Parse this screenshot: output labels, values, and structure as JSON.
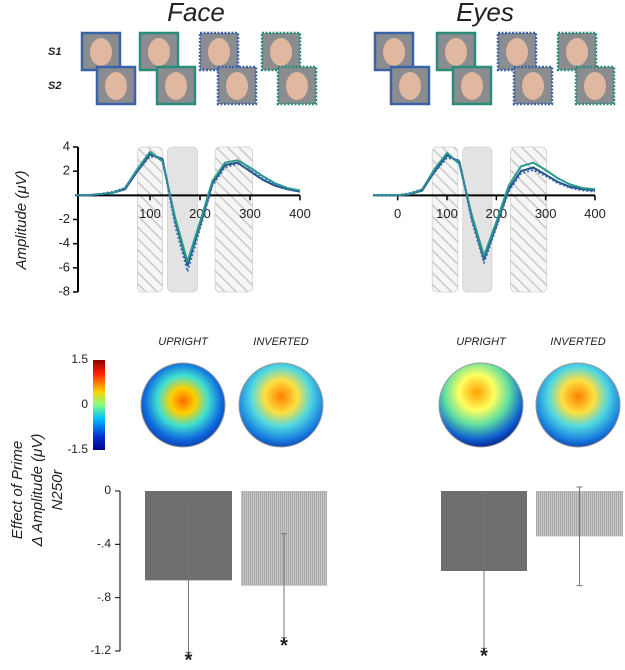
{
  "stimuli": {
    "rows": [
      "S1",
      "S2"
    ]
  },
  "topomaps": {
    "conditions": [
      "UPRIGHT",
      "INVERTED"
    ],
    "colorbar": {
      "range": [
        -1.5,
        1.5
      ],
      "ticks": [
        1.5,
        0,
        -1.5
      ]
    }
  },
  "chart_data": [
    {
      "type": "line",
      "title": "Face",
      "ylabel": "Amplitude (μV)",
      "x": [
        -50,
        -25,
        0,
        25,
        50,
        75,
        100,
        125,
        150,
        175,
        200,
        225,
        250,
        275,
        300,
        325,
        350,
        375,
        400
      ],
      "series": [
        {
          "color": "#1f4e8c",
          "dash": false,
          "values": [
            0,
            0,
            0.1,
            0.2,
            0.5,
            2,
            3.4,
            3,
            -2,
            -5.8,
            -2.5,
            1,
            2.5,
            2.7,
            2,
            1.3,
            0.8,
            0.5,
            0.3
          ]
        },
        {
          "color": "#2a9a8a",
          "dash": false,
          "values": [
            0,
            0,
            0.1,
            0.2,
            0.6,
            2.2,
            3.6,
            2.8,
            -1.8,
            -5.5,
            -2.2,
            1.2,
            2.7,
            2.9,
            2.3,
            1.6,
            1,
            0.6,
            0.4
          ]
        },
        {
          "color": "#3d6fb0",
          "dash": true,
          "values": [
            0,
            0,
            0.1,
            0.3,
            0.6,
            2,
            3.2,
            3.1,
            -2.5,
            -6.3,
            -2.8,
            0.8,
            2.3,
            2.6,
            2.1,
            1.4,
            0.9,
            0.5,
            0.3
          ]
        }
      ],
      "windows": [
        {
          "range": [
            75,
            125
          ],
          "style": "hatch"
        },
        {
          "range": [
            135,
            195
          ],
          "style": "solid"
        },
        {
          "range": [
            230,
            305
          ],
          "style": "hatch"
        }
      ],
      "xlim": [
        -50,
        400
      ],
      "xticks": [
        100,
        200,
        300,
        400
      ],
      "ylim": [
        -8,
        4
      ],
      "yticks": [
        4,
        2,
        -2,
        -4,
        -6,
        -8
      ]
    },
    {
      "type": "line",
      "title": "Eyes",
      "x": [
        -50,
        -25,
        0,
        25,
        50,
        75,
        100,
        125,
        150,
        175,
        200,
        225,
        250,
        275,
        300,
        325,
        350,
        375,
        400
      ],
      "series": [
        {
          "color": "#1f4e8c",
          "dash": false,
          "values": [
            0,
            0,
            0,
            0.1,
            0.4,
            2,
            3.3,
            2.8,
            -1.8,
            -5.3,
            -2.5,
            0.5,
            2,
            2.3,
            1.7,
            1.1,
            0.7,
            0.5,
            0.4
          ]
        },
        {
          "color": "#2a9a8a",
          "dash": false,
          "values": [
            0,
            0,
            0,
            0.1,
            0.5,
            2.2,
            3.5,
            2.6,
            -1.6,
            -5,
            -2.2,
            0.8,
            2.4,
            2.7,
            2.1,
            1.4,
            0.9,
            0.6,
            0.5
          ]
        },
        {
          "color": "#3d6fb0",
          "dash": true,
          "values": [
            0,
            0,
            0,
            0.2,
            0.5,
            1.9,
            3.1,
            2.9,
            -2.1,
            -5.6,
            -2.7,
            0.3,
            1.8,
            2.1,
            1.6,
            1,
            0.6,
            0.4,
            0.3
          ]
        }
      ],
      "windows": [
        {
          "range": [
            70,
            122
          ],
          "style": "hatch"
        },
        {
          "range": [
            132,
            191
          ],
          "style": "solid"
        },
        {
          "range": [
            229,
            302
          ],
          "style": "hatch"
        }
      ],
      "xlim": [
        -50,
        400
      ],
      "xticks": [
        0,
        100,
        200,
        300,
        400
      ],
      "ylim": [
        -8,
        4
      ]
    },
    {
      "type": "bar",
      "ylabel": [
        "Effect of Prime",
        "Δ Amplitude (μV)",
        "N250r"
      ],
      "values": [
        -0.67,
        -0.71
      ],
      "errors": [
        0.54,
        0.39
      ],
      "colors": [
        "#6d6e70",
        "#b8b9bb"
      ],
      "annotations": [
        {
          "bar": 0,
          "text": "*"
        },
        {
          "bar": 1,
          "text": "*"
        }
      ],
      "ylim": [
        -1.2,
        0
      ],
      "yticks": [
        0,
        {
          "value": -0.4,
          "label": "-.4"
        },
        {
          "value": -0.8,
          "label": "-.8"
        },
        -1.2
      ]
    },
    {
      "type": "bar",
      "values": [
        -0.6,
        -0.34
      ],
      "errors": [
        0.58,
        0.37
      ],
      "colors": [
        "#6d6e70",
        "#b8b9bb"
      ],
      "annotations": [
        {
          "bar": 0,
          "text": "*"
        }
      ],
      "ylim": [
        -1.2,
        0
      ]
    }
  ]
}
